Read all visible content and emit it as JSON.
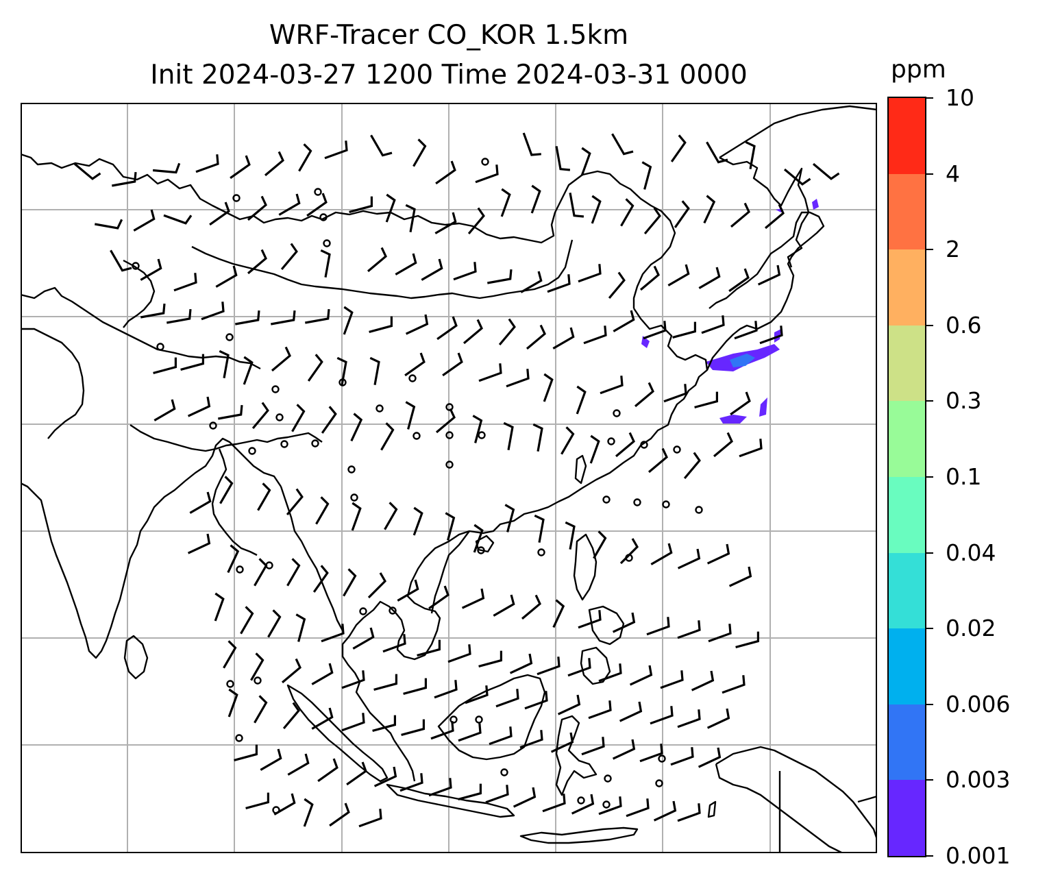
{
  "title": {
    "line1": "WRF-Tracer CO_KOR 1.5km",
    "line2": "Init 2024-03-27 1200 Time 2024-03-31 0000"
  },
  "colorbar": {
    "unit": "ppm",
    "levels": [
      "0.001",
      "0.003",
      "0.006",
      "0.02",
      "0.04",
      "0.1",
      "0.3",
      "0.6",
      "2",
      "4",
      "10"
    ],
    "colors": [
      "#6727ff",
      "#3175f5",
      "#00b0ee",
      "#34dfd7",
      "#69fcbf",
      "#98fb98",
      "#cde187",
      "#ffb060",
      "#ff7242",
      "#ff2a17"
    ]
  },
  "map": {
    "gridlines": "on",
    "gridline_color": "#b0b0b0",
    "coastline_color": "#000000",
    "features": [
      "coastlines",
      "wind barbs",
      "calm-wind circles",
      "CO tracer concentration shading"
    ],
    "tracer_shading_location": "Korean Peninsula and southern Japan"
  }
}
